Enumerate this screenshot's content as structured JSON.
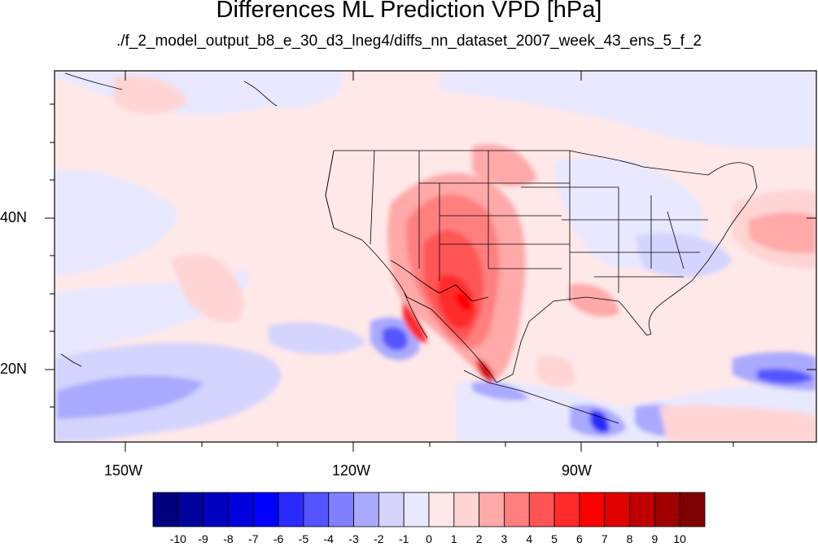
{
  "title": "Differences ML Prediction VPD [hPa]",
  "subtitle": "./f_2_model_output_b8_e_30_d3_lneg4/diffs_nn_dataset_2007_week_43_ens_5_f_2",
  "map": {
    "lon_range": [
      -160,
      -61
    ],
    "lat_range": [
      10,
      59
    ],
    "x_tick_labels": [
      "150W",
      "120W",
      "90W"
    ],
    "y_tick_labels": [
      "40N",
      "20N"
    ]
  },
  "colorbar": {
    "labels": [
      "-10",
      "-9",
      "-8",
      "-7",
      "-6",
      "-5",
      "-4",
      "-3",
      "-2",
      "-1",
      "0",
      "1",
      "2",
      "3",
      "4",
      "5",
      "6",
      "7",
      "8",
      "9",
      "10"
    ],
    "colors": [
      "#00007f",
      "#00009f",
      "#0000bf",
      "#0000df",
      "#0000ff",
      "#2a2aff",
      "#5454ff",
      "#7f7fff",
      "#a9a9ff",
      "#d4d4ff",
      "#e8e8ff",
      "#ffe8e8",
      "#ffd4d4",
      "#ffa9a9",
      "#ff7f7f",
      "#ff5454",
      "#ff2a2a",
      "#ff0000",
      "#df0000",
      "#bf0000",
      "#9f0000",
      "#7f0000"
    ]
  }
}
